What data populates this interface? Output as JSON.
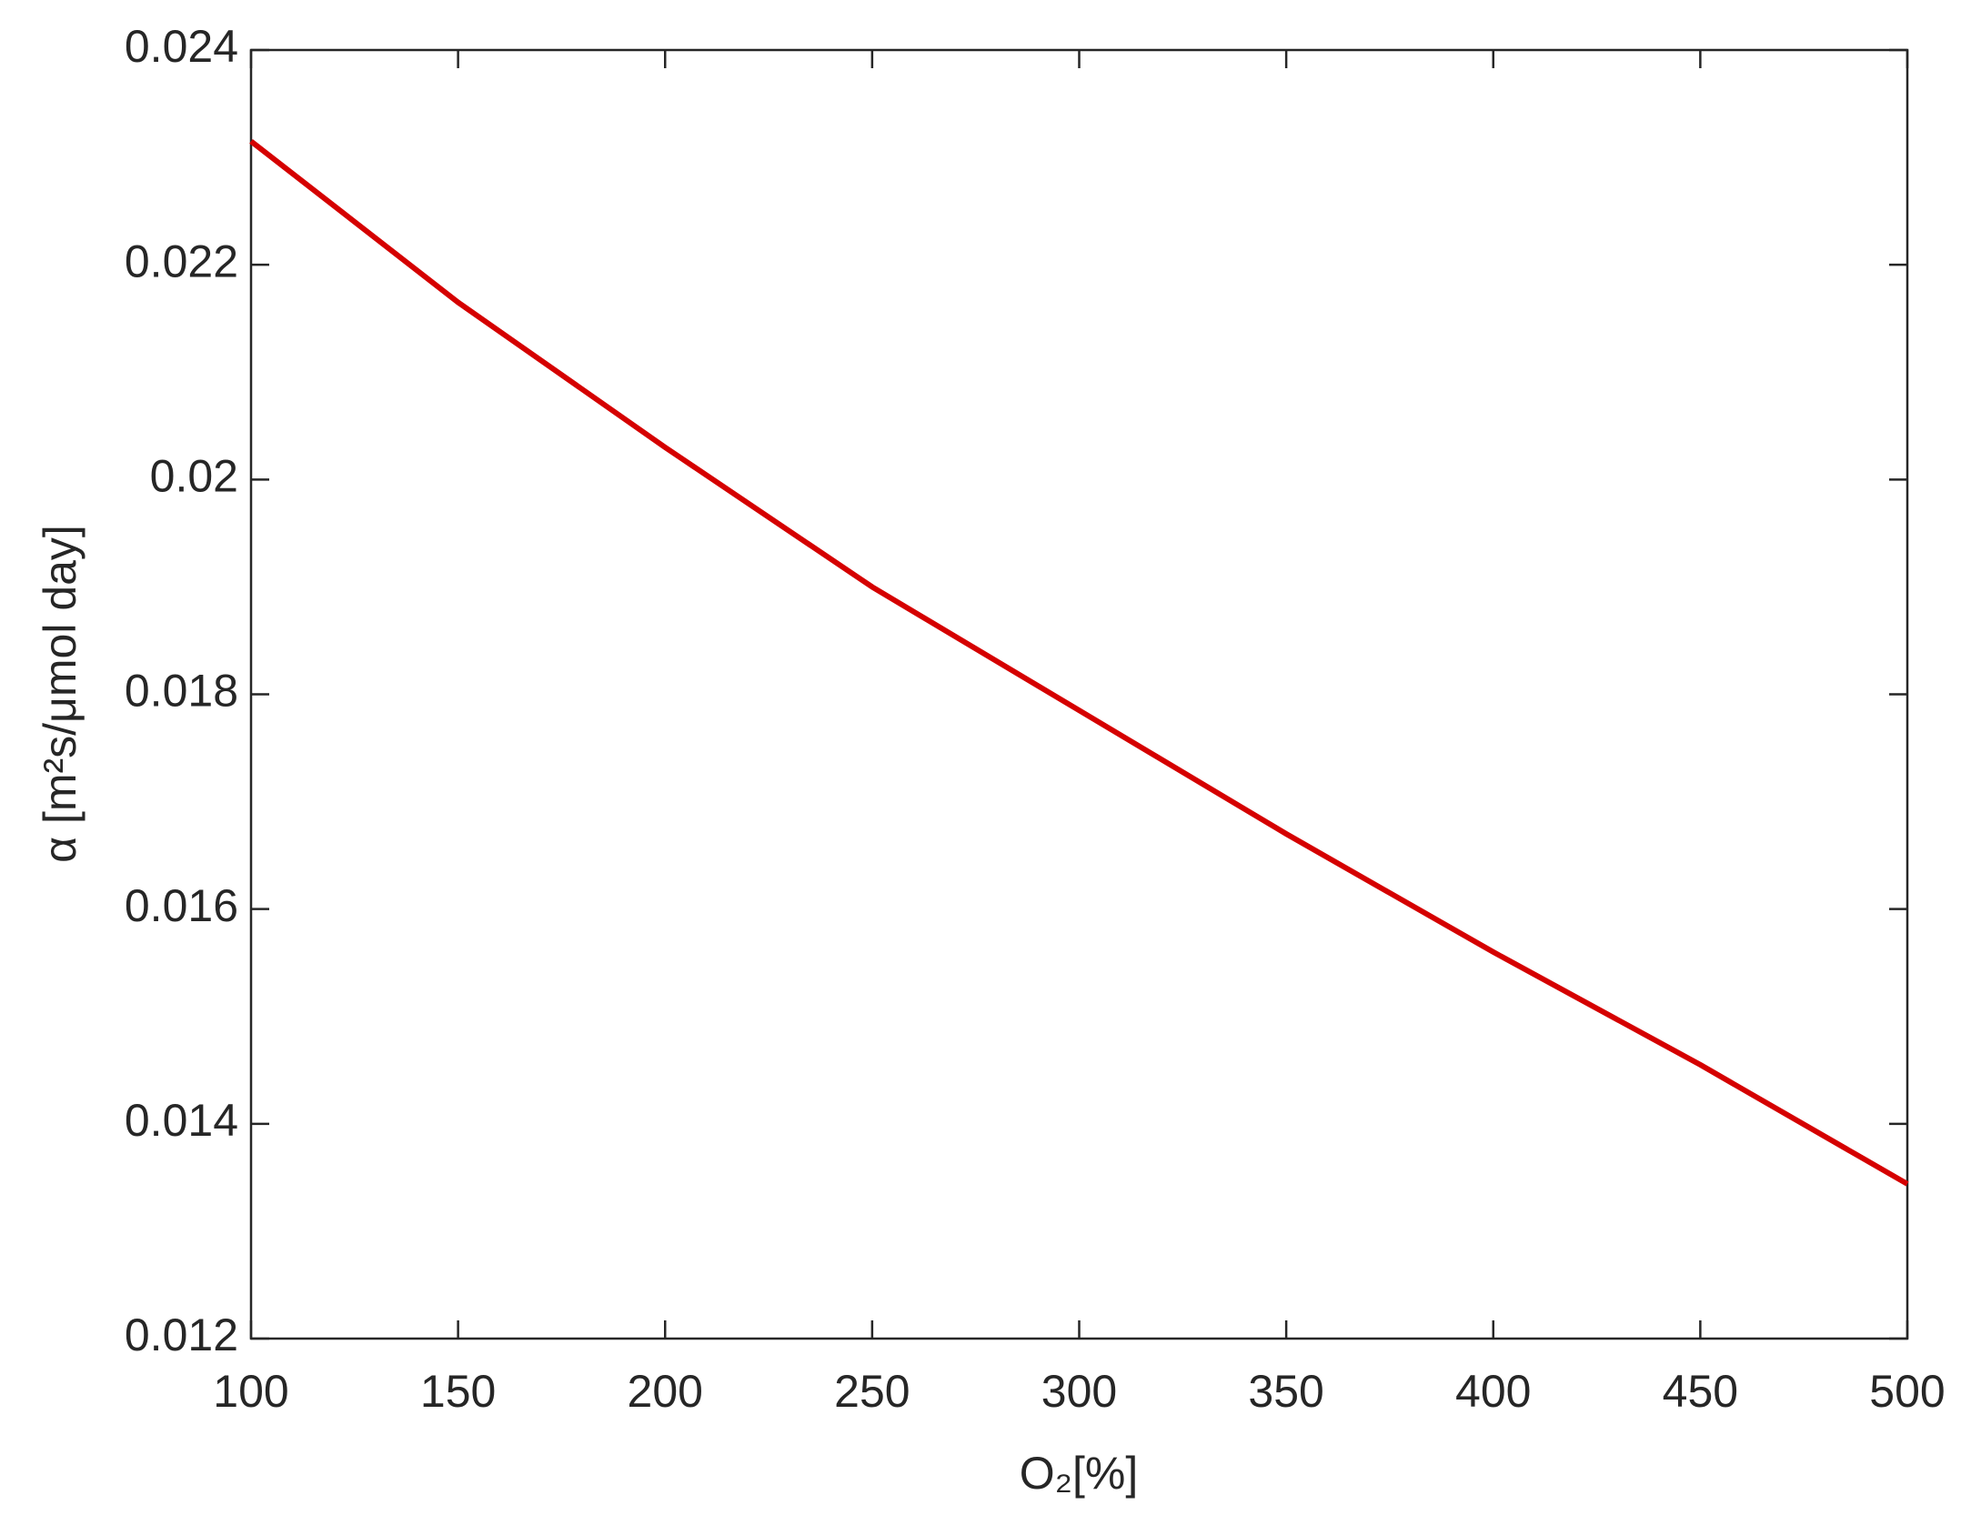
{
  "chart_data": {
    "type": "line",
    "xlabel": "O₂[%]",
    "ylabel": "α [m²s/μmol day]",
    "x": [
      100,
      150,
      200,
      250,
      300,
      350,
      400,
      450,
      500
    ],
    "series": [
      {
        "color": "#d50000",
        "values": [
          0.02315,
          0.02165,
          0.0203,
          0.019,
          0.01785,
          0.0167,
          0.0156,
          0.01455,
          0.01344
        ]
      }
    ],
    "xlim": [
      100,
      500
    ],
    "ylim": [
      0.012,
      0.024
    ],
    "xticks": [
      100,
      150,
      200,
      250,
      300,
      350,
      400,
      450,
      500
    ],
    "yticks": [
      0.012,
      0.014,
      0.016,
      0.018,
      0.02,
      0.022,
      0.024
    ],
    "grid": false
  }
}
